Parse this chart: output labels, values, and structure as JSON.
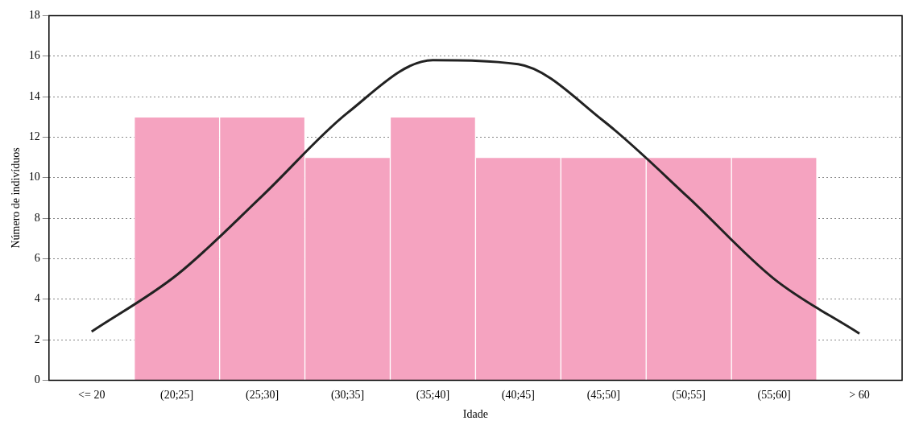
{
  "chart_data": {
    "type": "bar",
    "xlabel": "Idade",
    "ylabel": "Número de indivíduos",
    "categories": [
      "<= 20",
      "(20;25]",
      "(25;30]",
      "(30;35]",
      "(35;40]",
      "(40;45]",
      "(45;50]",
      "(50;55]",
      "(55;60]",
      "> 60"
    ],
    "series": [
      {
        "color": "#f5a3c0",
        "values": [
          0,
          13,
          13,
          11,
          13,
          11,
          11,
          11,
          11,
          0
        ]
      },
      {
        "type": "line",
        "color": "#222222",
        "values": [
          2.4,
          5.2,
          9.1,
          13.2,
          15.8,
          15.6,
          12.8,
          9,
          5,
          2.3
        ]
      }
    ],
    "ylim": [
      0,
      18
    ],
    "yticks": [
      0,
      2,
      4,
      6,
      8,
      10,
      12,
      14,
      16,
      18
    ],
    "grid": "y",
    "legend": false,
    "marker": "none",
    "line_style": "solid"
  }
}
